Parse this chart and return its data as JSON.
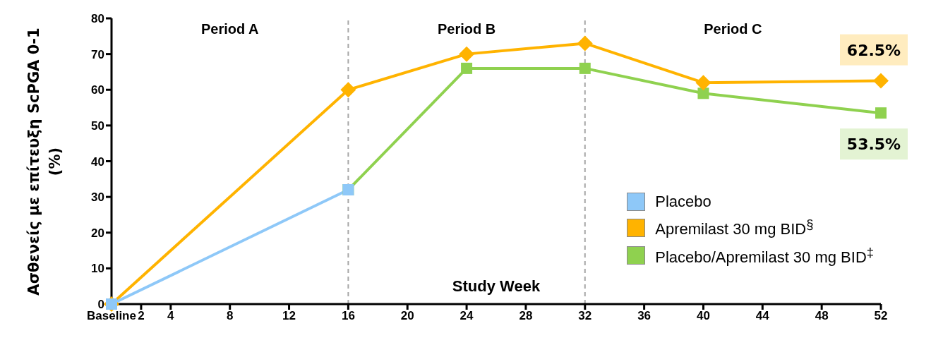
{
  "chart_data": {
    "type": "line",
    "ylabel": "Ασθενείς με επίτευξη ScPGA 0-1 (%)",
    "xlabel": "Study Week",
    "xlim": [
      0,
      52
    ],
    "xticks": [
      {
        "value": 0,
        "label": "Baseline"
      },
      2,
      4,
      8,
      12,
      16,
      20,
      24,
      28,
      32,
      36,
      40,
      44,
      48,
      52
    ],
    "ylim": [
      0,
      80
    ],
    "yticks": [
      0,
      10,
      20,
      30,
      40,
      50,
      60,
      70,
      80
    ],
    "legend": "bottom right",
    "ref_lines": [
      {
        "axis": "x",
        "value": 16,
        "color": "#a6a6a6",
        "line_style": "dashed"
      },
      {
        "axis": "x",
        "value": 32,
        "color": "#a6a6a6",
        "line_style": "dashed"
      }
    ],
    "annotations": [
      "Period A",
      "Period B",
      "Period C"
    ],
    "series": [
      {
        "name": "Placebo",
        "color": "#8ec8f8",
        "marker": "square",
        "x": [
          0,
          16
        ],
        "values": [
          0,
          32
        ]
      },
      {
        "name": "Apremilast 30 mg BID$^{§}$",
        "color": "#ffb300",
        "marker": "diamond",
        "x": [
          0,
          16,
          24,
          32,
          40,
          52
        ],
        "values": [
          0,
          60,
          70,
          73,
          62,
          62.5
        ],
        "value_labels": [
          null,
          null,
          null,
          null,
          null,
          "62.5%"
        ]
      },
      {
        "name": "Placebo/Apremilast 30 mg BID$^{‡}$",
        "color": "#8fd14f",
        "marker": "square",
        "x": [
          16,
          24,
          32,
          40,
          52
        ],
        "values": [
          32,
          66,
          66,
          59,
          53.5
        ],
        "value_labels": [
          null,
          null,
          null,
          null,
          "53.5%"
        ]
      }
    ]
  }
}
